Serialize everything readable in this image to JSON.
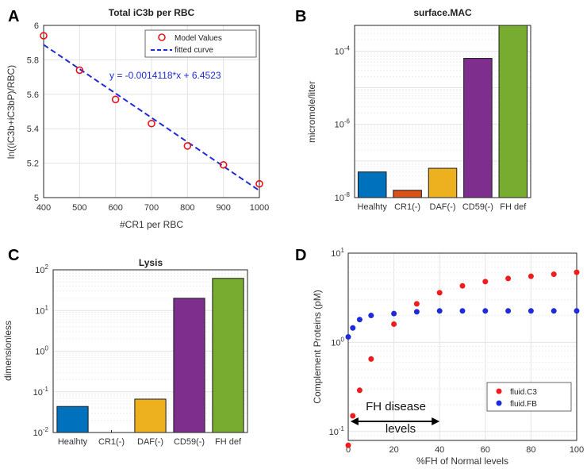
{
  "panel_letters": [
    "A",
    "B",
    "C",
    "D"
  ],
  "chart_data": [
    {
      "type": "scatter",
      "panel": "A",
      "title": "Total iC3b per RBC",
      "xlabel": "#CR1 per RBC",
      "ylabel": "ln((iC3b+iC3bP)/RBC)",
      "xlim": [
        400,
        1000
      ],
      "ylim": [
        5.0,
        6.0
      ],
      "xticks": [
        "400",
        "500",
        "600",
        "700",
        "800",
        "900",
        "1000"
      ],
      "yticks": [
        "5",
        "5.2",
        "5.4",
        "5.6",
        "5.8",
        "6"
      ],
      "series": [
        {
          "name": "Model Values",
          "x": [
            400,
            500,
            600,
            700,
            800,
            900,
            1000
          ],
          "y": [
            5.94,
            5.74,
            5.57,
            5.43,
            5.3,
            5.19,
            5.08
          ],
          "color": "#e8141b"
        }
      ],
      "fit": {
        "name": "fitted curve",
        "slope": -0.0014118,
        "intercept": 6.4523,
        "color": "#1f2bd8"
      },
      "equation": "y = -0.0014118*x + 6.4523",
      "legend": [
        "Model Values",
        "fitted curve"
      ]
    },
    {
      "type": "bar",
      "panel": "B",
      "title": "surface.MAC",
      "ylabel": "micromole/liter",
      "yscale": "log",
      "ylim_exp": [
        -8,
        -3.3
      ],
      "ytick_labels": [
        {
          "base": "10",
          "exp": "-8",
          "value": -8
        },
        {
          "base": "10",
          "exp": "-6",
          "value": -6
        },
        {
          "base": "10",
          "exp": "-4",
          "value": -4
        }
      ],
      "categories": [
        "Healhty",
        "CR1(-)",
        "DAF(-)",
        "CD59(-)",
        "FH def"
      ],
      "values_log10": [
        -7.3,
        -7.8,
        -7.2,
        -4.2,
        -3.3
      ],
      "colors": [
        "#0072bd",
        "#d95319",
        "#edb120",
        "#7e2f8e",
        "#77ac30"
      ]
    },
    {
      "type": "bar",
      "panel": "C",
      "title": "Lysis",
      "ylabel": "dimensionless",
      "yscale": "log",
      "ylim_exp": [
        -2,
        2
      ],
      "ytick_labels": [
        {
          "base": "10",
          "exp": "-2",
          "value": -2
        },
        {
          "base": "10",
          "exp": "-1",
          "value": -1
        },
        {
          "base": "10",
          "exp": "0",
          "value": 0
        },
        {
          "base": "10",
          "exp": "1",
          "value": 1
        },
        {
          "base": "10",
          "exp": "2",
          "value": 2
        }
      ],
      "categories": [
        "Healhty",
        "CR1(-)",
        "DAF(-)",
        "CD59(-)",
        "FH def"
      ],
      "values_log10": [
        -1.36,
        null,
        -1.18,
        1.3,
        1.79
      ],
      "colors": [
        "#0072bd",
        "#d95319",
        "#edb120",
        "#7e2f8e",
        "#77ac30"
      ]
    },
    {
      "type": "scatter",
      "panel": "D",
      "xlabel": "%FH of Normal levels",
      "ylabel": "Complement Proteins (pM)",
      "yscale": "log",
      "xlim": [
        0,
        100
      ],
      "ylim_exp": [
        -1.1,
        1
      ],
      "xticks": [
        "0",
        "20",
        "40",
        "60",
        "80",
        "100"
      ],
      "ytick_labels": [
        {
          "base": "10",
          "exp": "-1",
          "value": -1
        },
        {
          "base": "10",
          "exp": "0",
          "value": 0
        },
        {
          "base": "10",
          "exp": "1",
          "value": 1
        }
      ],
      "series": [
        {
          "name": "fluid.C3",
          "color": "#ee1c1c",
          "x": [
            0,
            2,
            5,
            10,
            20,
            30,
            40,
            50,
            60,
            70,
            80,
            90,
            100
          ],
          "y": [
            0.07,
            0.15,
            0.29,
            0.65,
            1.6,
            2.7,
            3.6,
            4.3,
            4.8,
            5.2,
            5.5,
            5.8,
            6.1
          ]
        },
        {
          "name": "fluid.FB",
          "color": "#1f2bd8",
          "x": [
            0,
            2,
            5,
            10,
            20,
            30,
            40,
            50,
            60,
            70,
            80,
            90,
            100
          ],
          "y": [
            1.15,
            1.45,
            1.8,
            2.0,
            2.1,
            2.2,
            2.25,
            2.25,
            2.25,
            2.25,
            2.25,
            2.25,
            2.25
          ]
        }
      ],
      "legend": [
        "fluid.C3",
        "fluid.FB"
      ],
      "annotation": {
        "text_line1": "FH disease",
        "text_line2": "levels",
        "x_from": 1,
        "x_to": 40
      }
    }
  ]
}
